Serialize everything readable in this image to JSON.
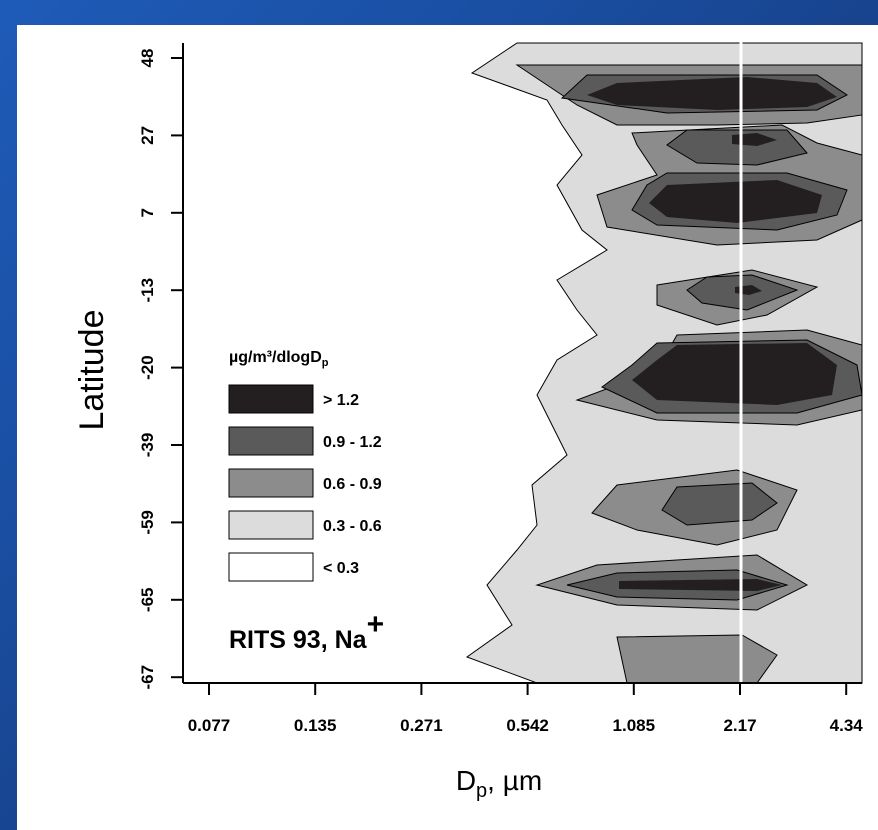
{
  "chart_data": {
    "type": "heatmap",
    "label": "RITS 93, Na",
    "label_superscript": "+",
    "xlabel_main": "D",
    "xlabel_sub": "p",
    "xlabel_unit": ", µm",
    "ylabel": "Latitude",
    "x_ticks": [
      "0.077",
      "0.135",
      "0.271",
      "0.542",
      "1.085",
      "2.17",
      "4.34"
    ],
    "y_ticks": [
      "48",
      "27",
      "7",
      "-13",
      "-20",
      "-39",
      "-59",
      "-65",
      "-67"
    ],
    "legend_title": "µg/m³/dlogD",
    "legend_title_sub": "p",
    "legend": [
      {
        "label": "> 1.2",
        "color": "#231f20"
      },
      {
        "label": "0.9 - 1.2",
        "color": "#5a5a5a"
      },
      {
        "label": "0.6 - 0.9",
        "color": "#8c8c8c"
      },
      {
        "label": "0.3 - 0.6",
        "color": "#dcdcdc"
      },
      {
        "label": "< 0.3",
        "color": "#ffffff"
      }
    ],
    "vertical_marker": "2.17",
    "colors": {
      "background": "#1a4fa3",
      "plot": "#ffffff"
    }
  }
}
